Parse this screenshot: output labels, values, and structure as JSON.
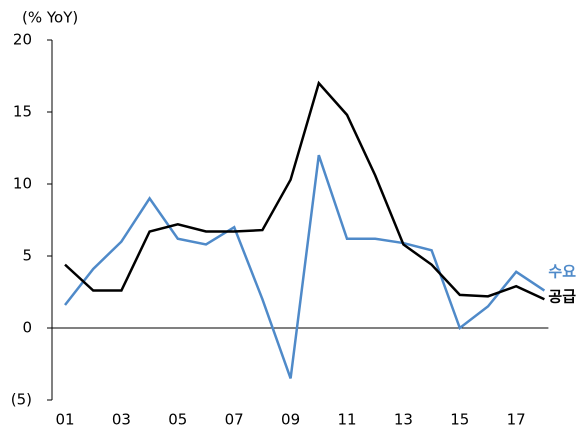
{
  "chart_data": {
    "type": "line",
    "y_axis_label": "(% YoY)",
    "categories": [
      "01",
      null,
      "03",
      null,
      "05",
      null,
      "07",
      null,
      "09",
      null,
      "11",
      null,
      "13",
      null,
      "15",
      null,
      "17",
      null
    ],
    "series": [
      {
        "name": "수요",
        "color": "#4f8ac9",
        "values": [
          1.6,
          4.1,
          6.0,
          9.0,
          6.2,
          5.8,
          7.0,
          2.0,
          -3.5,
          12.0,
          6.2,
          6.2,
          5.9,
          5.4,
          0.0,
          1.5,
          3.9,
          2.6
        ]
      },
      {
        "name": "공급",
        "color": "#000000",
        "values": [
          4.4,
          2.6,
          2.6,
          6.7,
          7.2,
          6.7,
          6.7,
          6.8,
          10.3,
          17.0,
          14.8,
          10.6,
          5.8,
          4.4,
          2.3,
          2.2,
          2.9,
          2.0
        ]
      }
    ],
    "ylim": [
      -5,
      20
    ],
    "yticks": [
      20,
      15,
      10,
      5,
      0,
      {
        "value": -5,
        "label": "(5)"
      }
    ],
    "grid": false
  }
}
